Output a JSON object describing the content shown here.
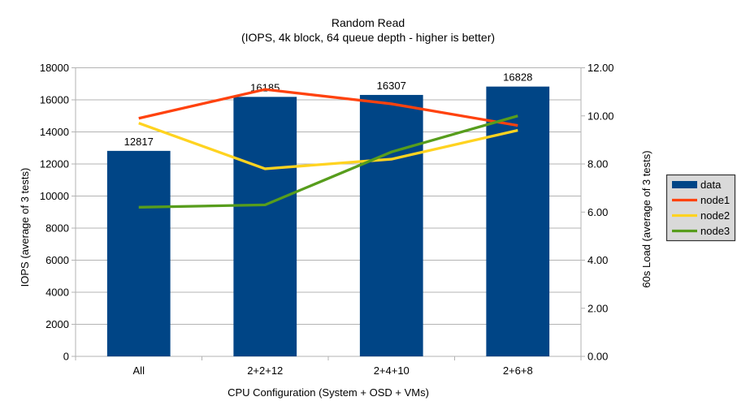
{
  "window": {
    "background": "#FFFFFF"
  },
  "chart_data": {
    "type": "bar+line",
    "title": "Random Read",
    "subtitle": "(IOPS, 4k block, 64 queue depth - higher is better)",
    "categories": [
      "All",
      "2+2+12",
      "2+4+10",
      "2+6+8"
    ],
    "xlabel": "CPU Configuration (System + OSD + VMs)",
    "left_axis": {
      "label": "IOPS (average of 3 tests)",
      "min": 0,
      "max": 18000,
      "tick_step": 2000
    },
    "right_axis": {
      "label": "60s Load (average of 3 tests)",
      "min": 0,
      "max": 12,
      "tick_step": 2,
      "decimals": 2
    },
    "bar_series": {
      "name": "data",
      "color": "#004586",
      "axis": "left",
      "values": [
        12817,
        16185,
        16307,
        16828
      ],
      "data_labels": [
        "12817",
        "16185",
        "16307",
        "16828"
      ]
    },
    "line_series": [
      {
        "name": "node1",
        "color": "#FF420E",
        "axis": "right",
        "values": [
          9.9,
          11.1,
          10.5,
          9.6
        ]
      },
      {
        "name": "node2",
        "color": "#FFD320",
        "axis": "right",
        "values": [
          9.7,
          7.8,
          8.2,
          9.4
        ]
      },
      {
        "name": "node3",
        "color": "#579D1C",
        "axis": "right",
        "values": [
          6.2,
          6.3,
          8.5,
          10.0
        ]
      }
    ],
    "legend": {
      "position": "right",
      "background": "#D9D9D9",
      "border_color": "#333333",
      "entries": [
        {
          "label": "data",
          "swatch": "rect",
          "color": "#004586"
        },
        {
          "label": "node1",
          "swatch": "line",
          "color": "#FF420E"
        },
        {
          "label": "node2",
          "swatch": "line",
          "color": "#FFD320"
        },
        {
          "label": "node3",
          "swatch": "line",
          "color": "#579D1C"
        }
      ]
    },
    "grid": {
      "horizontal": true,
      "color": "#B3B3B3"
    },
    "text_color": "#000000"
  }
}
